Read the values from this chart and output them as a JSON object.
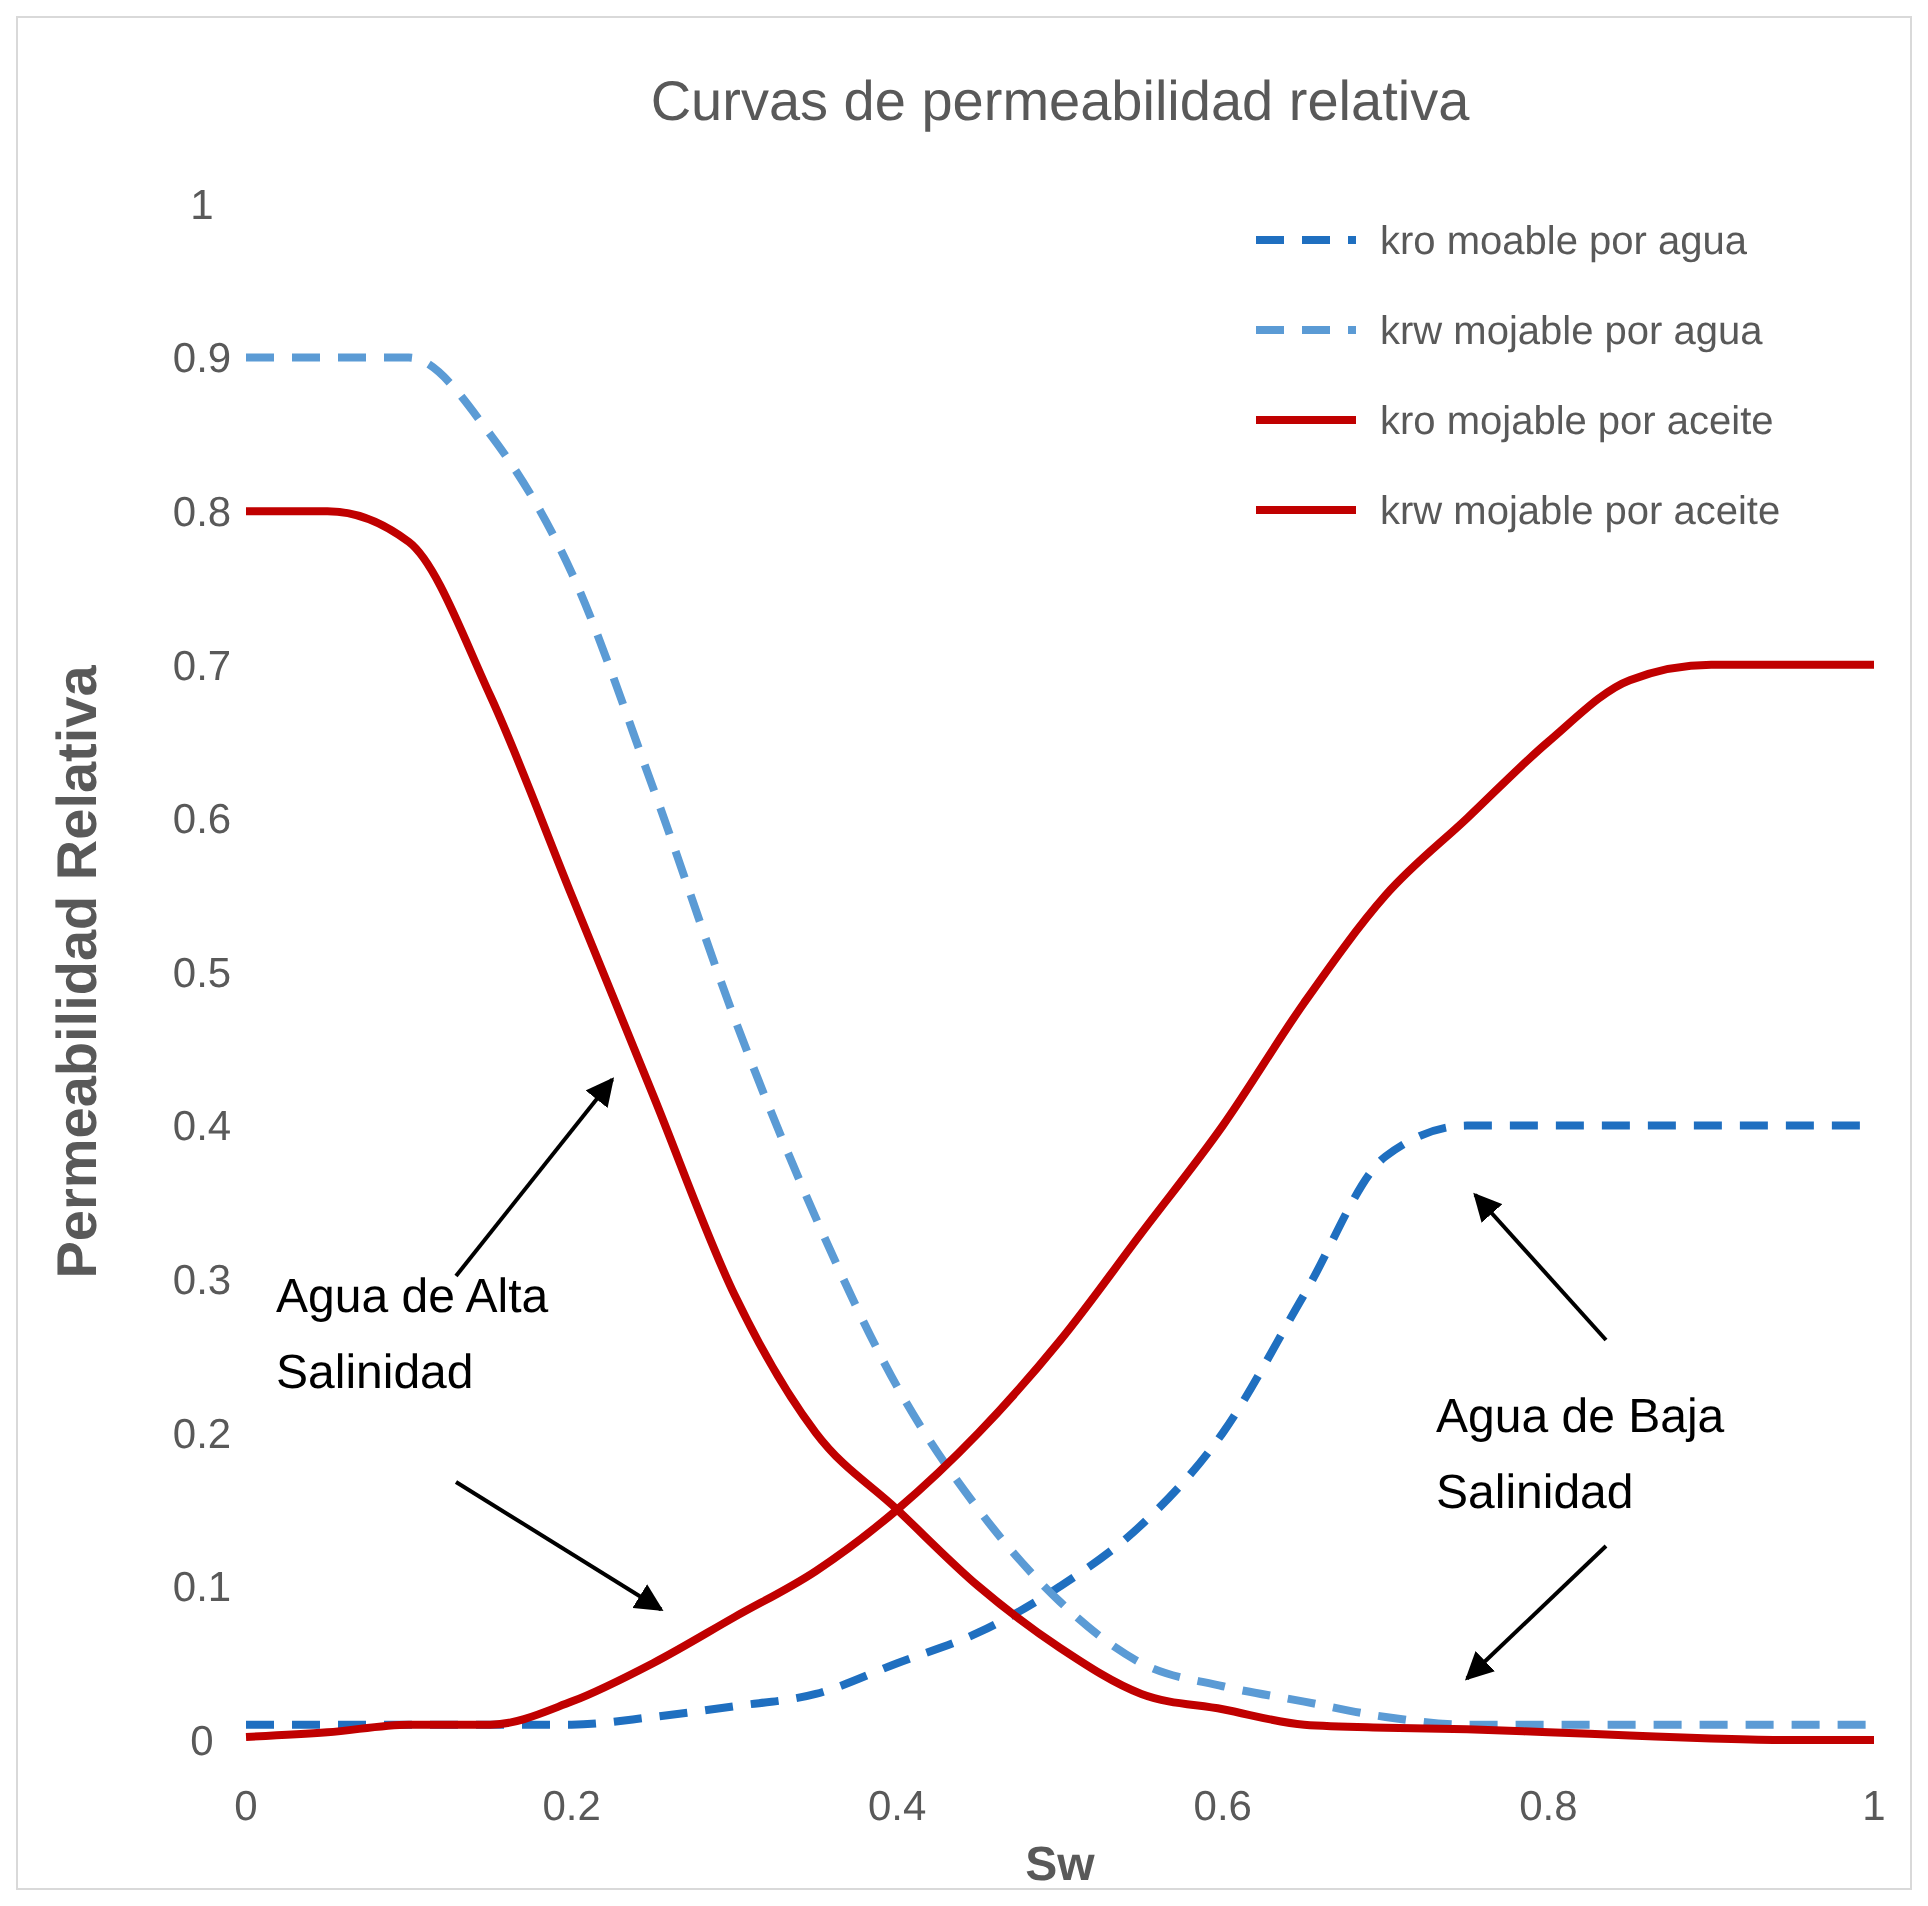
{
  "chart_data": {
    "type": "line",
    "title": "Curvas de permeabilidad relativa",
    "xlabel": "Sw",
    "ylabel": "Permeabilidad Relativa",
    "xlim": [
      0,
      1
    ],
    "xticks": [
      0,
      0.2,
      0.4,
      0.6,
      0.8,
      1
    ],
    "ylim": [
      0,
      1
    ],
    "yticks": [
      0,
      0.1,
      0.2,
      0.3,
      0.4,
      0.5,
      0.6,
      0.7,
      0.8,
      0.9,
      1
    ],
    "grid": false,
    "legend": "top right",
    "marker": "none",
    "x": [
      0,
      0.05,
      0.1,
      0.15,
      0.2,
      0.25,
      0.3,
      0.35,
      0.4,
      0.45,
      0.5,
      0.55,
      0.6,
      0.65,
      0.7,
      0.75,
      0.8,
      0.85,
      0.9,
      0.95,
      1
    ],
    "series": [
      {
        "name": "kro moable por agua",
        "color": "#1f6fc0",
        "line_style": "dashed",
        "values": [
          0.01,
          0.01,
          0.01,
          0.01,
          0.01,
          0.015,
          0.022,
          0.03,
          0.05,
          0.07,
          0.1,
          0.14,
          0.2,
          0.29,
          0.38,
          0.4,
          0.4,
          0.4,
          0.4,
          0.4,
          0.4
        ]
      },
      {
        "name": "krw mojable por agua",
        "color": "#5b9bd5",
        "line_style": "dashed",
        "values": [
          0.9,
          0.9,
          0.9,
          0.85,
          0.76,
          0.62,
          0.47,
          0.34,
          0.23,
          0.15,
          0.09,
          0.05,
          0.035,
          0.025,
          0.015,
          0.01,
          0.01,
          0.01,
          0.01,
          0.01,
          0.01
        ]
      },
      {
        "name": "kro mojable por aceite",
        "color": "#c00000",
        "line_style": "solid",
        "values": [
          0.8,
          0.8,
          0.78,
          0.68,
          0.55,
          0.42,
          0.29,
          0.2,
          0.15,
          0.1,
          0.06,
          0.03,
          0.02,
          0.01,
          0.008,
          0.007,
          0.005,
          0.003,
          0.001,
          0,
          0
        ]
      },
      {
        "name": "krw mojable por aceite",
        "color": "#c00000",
        "line_style": "solid",
        "values": [
          0.002,
          0.005,
          0.01,
          0.01,
          0.025,
          0.05,
          0.08,
          0.11,
          0.15,
          0.2,
          0.26,
          0.33,
          0.4,
          0.48,
          0.55,
          0.6,
          0.65,
          0.69,
          0.7,
          0.7,
          0.7
        ]
      }
    ],
    "annotations": [
      "Agua de Alta\nSalinidad",
      "Agua de Baja\nSalinidad"
    ]
  }
}
